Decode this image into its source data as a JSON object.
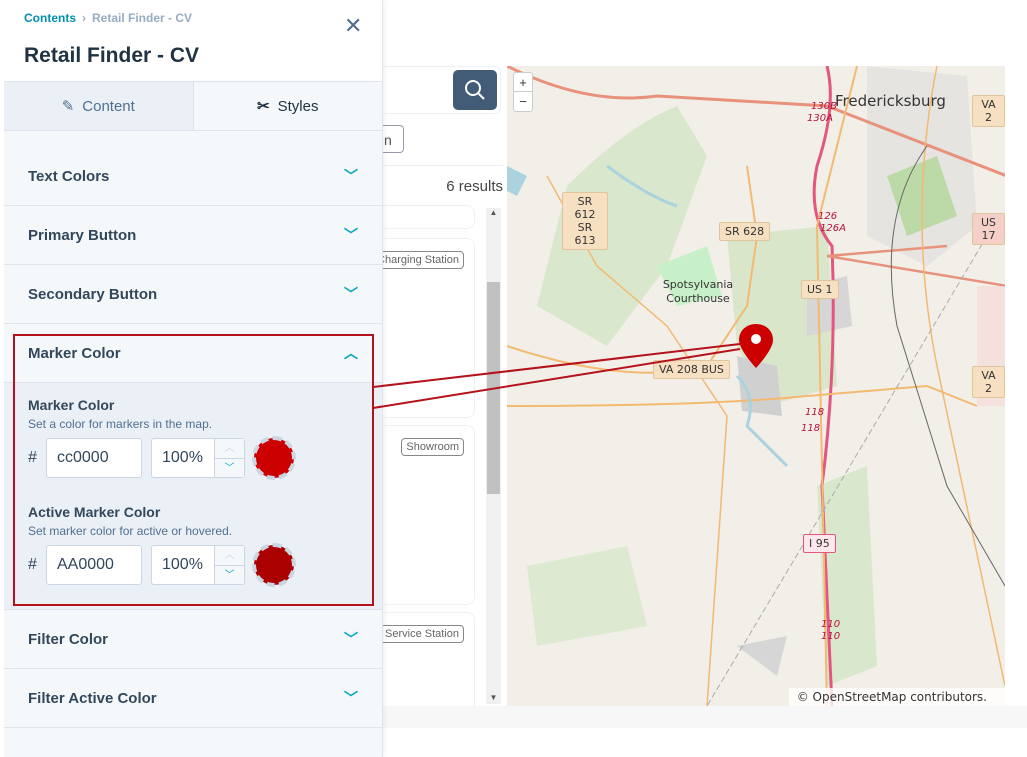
{
  "panel": {
    "breadcrumb": {
      "root": "Contents",
      "current": "Retail Finder - CV"
    },
    "title": "Retail Finder - CV",
    "tabs": [
      {
        "label": "Content",
        "icon": "pencil-icon"
      },
      {
        "label": "Styles",
        "icon": "brush-icon"
      }
    ],
    "sections_top": [
      {
        "label": "Text Colors"
      },
      {
        "label": "Primary Button"
      },
      {
        "label": "Secondary Button"
      }
    ],
    "marker_section": {
      "label": "Marker Color",
      "marker": {
        "label": "Marker Color",
        "help": "Set a color for markers in the map.",
        "hex": "cc0000",
        "opacity": "100%",
        "color": "#cc0000"
      },
      "active": {
        "label": "Active Marker Color",
        "help": "Set marker color for active or hovered.",
        "hex": "AA0000",
        "opacity": "100%",
        "color": "#aa0000"
      }
    },
    "sections_bottom": [
      {
        "label": "Filter Color"
      },
      {
        "label": "Filter Active Color"
      }
    ],
    "hash": "#"
  },
  "preview": {
    "filter_label_partial": "n",
    "results": "6 results",
    "chips": [
      "Charging Station",
      "Showroom",
      "Service Station"
    ]
  },
  "map": {
    "zoom_in": "+",
    "zoom_out": "−",
    "places": [
      "Fredericksburg",
      "Spotsylvania Courthouse"
    ],
    "shields": [
      "SR 612 SR 613",
      "SR 628",
      "US 1",
      "VA 208 BUS",
      "VA 2",
      "US 17",
      "VA 2",
      "I 95"
    ],
    "exits": [
      "130B",
      "130A",
      "126",
      "126A",
      "118",
      "118",
      "110",
      "110"
    ],
    "attribution": "© OpenStreetMap contributors.",
    "marker_color": "#cc0000"
  },
  "highlight_color": "#b5121b"
}
